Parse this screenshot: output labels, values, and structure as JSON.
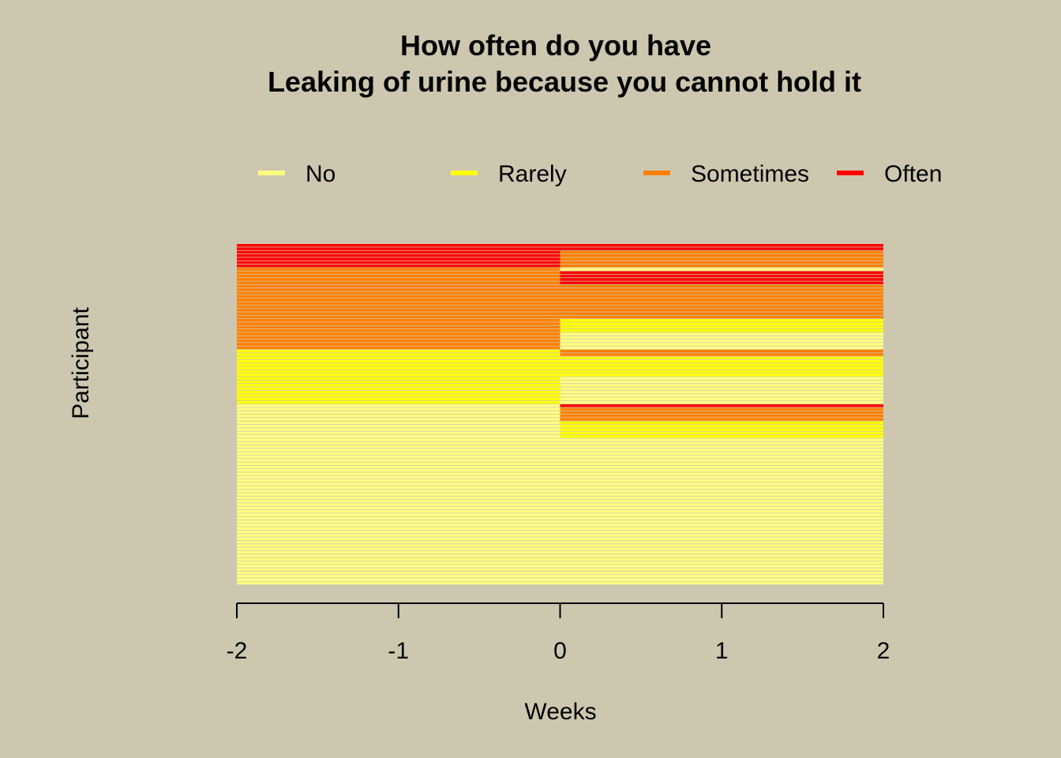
{
  "chart_data": {
    "type": "heatmap",
    "title_lines": [
      "How often do you have",
      "Leaking of urine because you cannot hold it"
    ],
    "xlabel": "Weeks",
    "ylabel": "Participant",
    "xlim": [
      -2,
      2
    ],
    "x_ticks": [
      "-2",
      "-1",
      "0",
      "1",
      "2"
    ],
    "legend": [
      {
        "label": "No",
        "color": "#ffff80"
      },
      {
        "label": "Rarely",
        "color": "#ffff00"
      },
      {
        "label": "Sometimes",
        "color": "#ff8000"
      },
      {
        "label": "Often",
        "color": "#ff0000"
      }
    ],
    "legend_position": "top",
    "periods": [
      {
        "x_start": -2,
        "x_end": 0
      },
      {
        "x_start": 0,
        "x_end": 2
      }
    ],
    "participant_count": 100,
    "response_blocks_top_to_bottom": [
      {
        "period_0": "Often",
        "period_1": "Often",
        "participants": 2
      },
      {
        "period_0": "Often",
        "period_1": "Sometimes",
        "participants": 5
      },
      {
        "period_0": "Sometimes",
        "period_1": "No",
        "participants": 1
      },
      {
        "period_0": "Sometimes",
        "period_1": "Often",
        "participants": 4
      },
      {
        "period_0": "Sometimes",
        "period_1": "Sometimes",
        "participants": 10
      },
      {
        "period_0": "Sometimes",
        "period_1": "Rarely",
        "participants": 4
      },
      {
        "period_0": "Sometimes",
        "period_1": "No",
        "participants": 5
      },
      {
        "period_0": "Rarely",
        "period_1": "Sometimes",
        "participants": 2
      },
      {
        "period_0": "Rarely",
        "period_1": "Rarely",
        "participants": 6
      },
      {
        "period_0": "Rarely",
        "period_1": "No",
        "participants": 8
      },
      {
        "period_0": "No",
        "period_1": "Often",
        "participants": 1
      },
      {
        "period_0": "No",
        "period_1": "Sometimes",
        "participants": 4
      },
      {
        "period_0": "No",
        "period_1": "Rarely",
        "participants": 5
      },
      {
        "period_0": "No",
        "period_1": "No",
        "participants": 43
      }
    ]
  }
}
